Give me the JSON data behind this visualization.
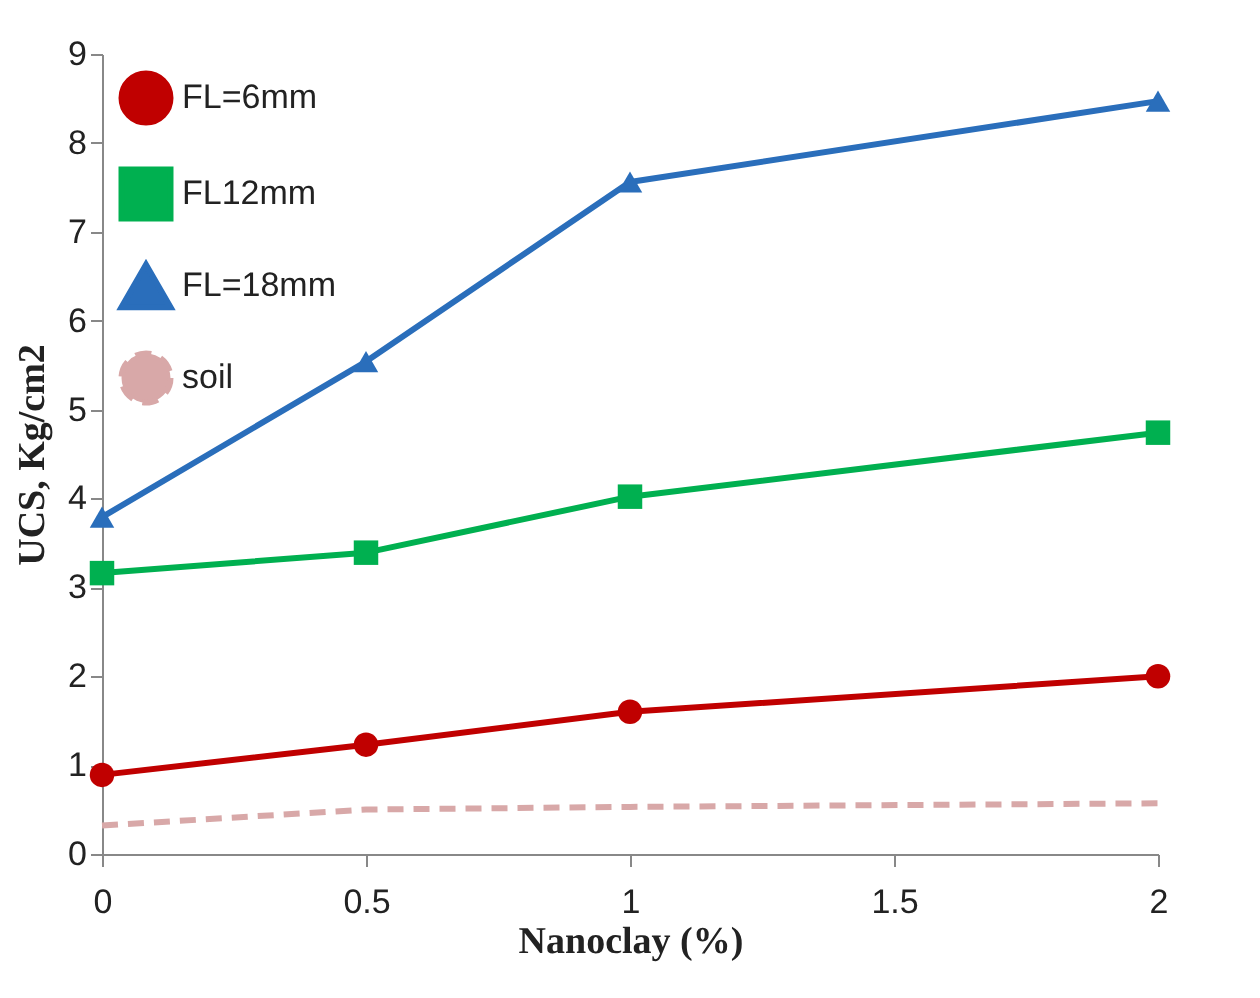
{
  "chart_data": {
    "type": "line",
    "xlabel": "Nanoclay (%)",
    "ylabel": "UCS, Kg/cm2",
    "x": [
      0,
      0.5,
      1,
      2
    ],
    "series": [
      {
        "name": "FL=6mm",
        "color": "#c00000",
        "marker": "circle",
        "line_style": "solid",
        "values": [
          0.89,
          1.23,
          1.6,
          2.0
        ]
      },
      {
        "name": "FL12mm",
        "color": "#00b050",
        "marker": "square",
        "line_style": "solid",
        "values": [
          3.16,
          3.39,
          4.02,
          4.74
        ]
      },
      {
        "name": "FL=18mm",
        "color": "#2a6ebb",
        "marker": "triangle",
        "line_style": "solid",
        "values": [
          3.79,
          5.54,
          7.56,
          8.47
        ]
      },
      {
        "name": "soil",
        "color": "#d8a8a8",
        "marker": "none",
        "line_style": "dashed",
        "values": [
          0.32,
          0.5,
          0.53,
          0.57
        ]
      }
    ],
    "xlim": [
      0,
      2
    ],
    "xticks": [
      0,
      0.5,
      1,
      1.5,
      2
    ],
    "ylim": [
      0,
      9
    ],
    "yticks": [
      0,
      1,
      2,
      3,
      4,
      5,
      6,
      7,
      8,
      9
    ],
    "grid": false,
    "legend": "top left"
  }
}
